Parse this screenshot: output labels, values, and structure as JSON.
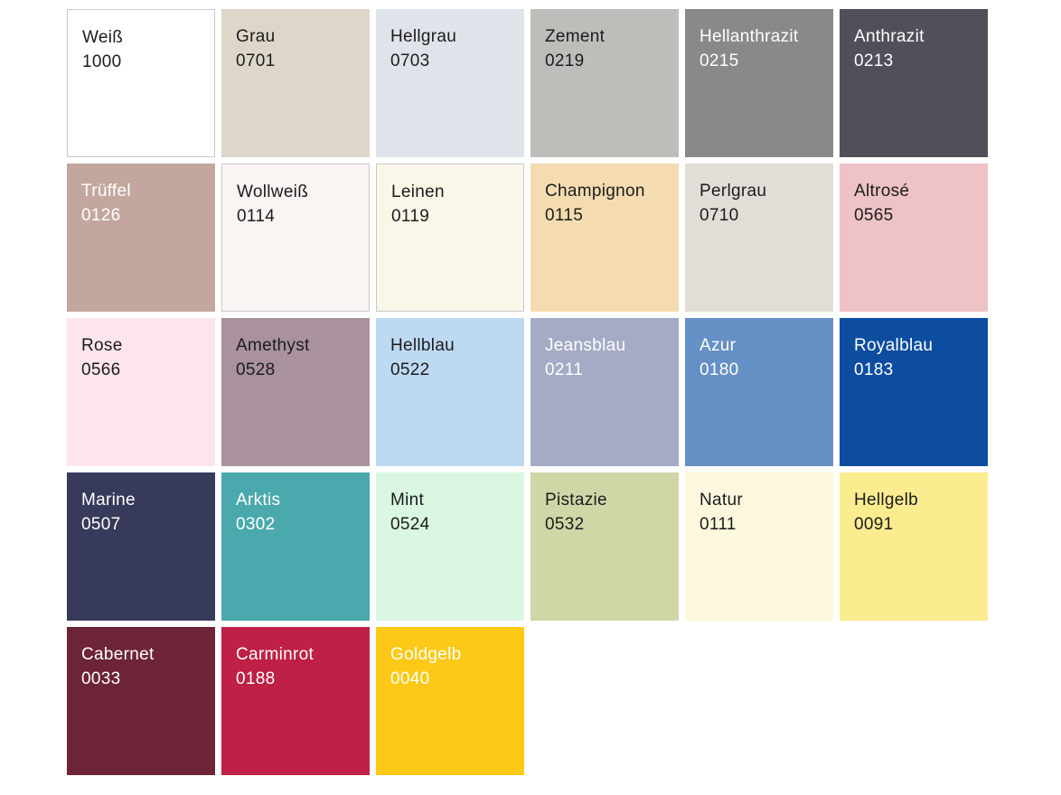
{
  "palette": {
    "columns": 6,
    "text_dark": "#1c1c1c",
    "text_light": "#ffffff",
    "border_color": "#c9c9c9",
    "tiles": [
      {
        "name": "Weiß",
        "code": "1000",
        "color": "#ffffff",
        "text": "dark",
        "bordered": true
      },
      {
        "name": "Grau",
        "code": "0701",
        "color": "#ded7c9",
        "text": "dark",
        "bordered": false
      },
      {
        "name": "Hellgrau",
        "code": "0703",
        "color": "#dfe4eb",
        "text": "dark",
        "bordered": false
      },
      {
        "name": "Zement",
        "code": "0219",
        "color": "#bfbdb9",
        "text": "dark",
        "bordered": false
      },
      {
        "name": "Hellanthrazit",
        "code": "0215",
        "color": "#8b888a",
        "text": "light",
        "bordered": false
      },
      {
        "name": "Anthrazit",
        "code": "0213",
        "color": "#524f5a",
        "text": "light",
        "bordered": false
      },
      {
        "name": "Trüffel",
        "code": "0126",
        "color": "#c3a79e",
        "text": "light",
        "bordered": false
      },
      {
        "name": "Wollweiß",
        "code": "0114",
        "color": "#faf4f2",
        "text": "dark",
        "bordered": true
      },
      {
        "name": "Leinen",
        "code": "0119",
        "color": "#faf7e9",
        "text": "dark",
        "bordered": true
      },
      {
        "name": "Champignon",
        "code": "0115",
        "color": "#f4dcb0",
        "text": "dark",
        "bordered": false
      },
      {
        "name": "Perlgrau",
        "code": "0710",
        "color": "#e1ded8",
        "text": "dark",
        "bordered": false
      },
      {
        "name": "Altrosé",
        "code": "0565",
        "color": "#eec3c7",
        "text": "dark",
        "bordered": false
      },
      {
        "name": "Rose",
        "code": "0566",
        "color": "#fde4ed",
        "text": "dark",
        "bordered": false
      },
      {
        "name": "Amethyst",
        "code": "0528",
        "color": "#a9919f",
        "text": "dark",
        "bordered": false
      },
      {
        "name": "Hellblau",
        "code": "0522",
        "color": "#bed9f2",
        "text": "dark",
        "bordered": false
      },
      {
        "name": "Jeansblau",
        "code": "0211",
        "color": "#a5abc6",
        "text": "light",
        "bordered": false
      },
      {
        "name": "Azur",
        "code": "0180",
        "color": "#6590c5",
        "text": "light",
        "bordered": false
      },
      {
        "name": "Royalblau",
        "code": "0183",
        "color": "#0c4da0",
        "text": "light",
        "bordered": false
      },
      {
        "name": "Marine",
        "code": "0507",
        "color": "#383a5b",
        "text": "light",
        "bordered": false
      },
      {
        "name": "Arktis",
        "code": "0302",
        "color": "#4aa9ad",
        "text": "light",
        "bordered": false
      },
      {
        "name": "Mint",
        "code": "0524",
        "color": "#d9f7e2",
        "text": "dark",
        "bordered": false
      },
      {
        "name": "Pistazie",
        "code": "0532",
        "color": "#d1d6a7",
        "text": "dark",
        "bordered": false
      },
      {
        "name": "Natur",
        "code": "0111",
        "color": "#fdf7dd",
        "text": "dark",
        "bordered": false
      },
      {
        "name": "Hellgelb",
        "code": "0091",
        "color": "#fcec90",
        "text": "dark",
        "bordered": false
      },
      {
        "name": "Cabernet",
        "code": "0033",
        "color": "#6d2436",
        "text": "light",
        "bordered": false
      },
      {
        "name": "Carminrot",
        "code": "0188",
        "color": "#bf2045",
        "text": "light",
        "bordered": false
      },
      {
        "name": "Goldgelb",
        "code": "0040",
        "color": "#fdc916",
        "text": "light",
        "bordered": false
      }
    ]
  }
}
